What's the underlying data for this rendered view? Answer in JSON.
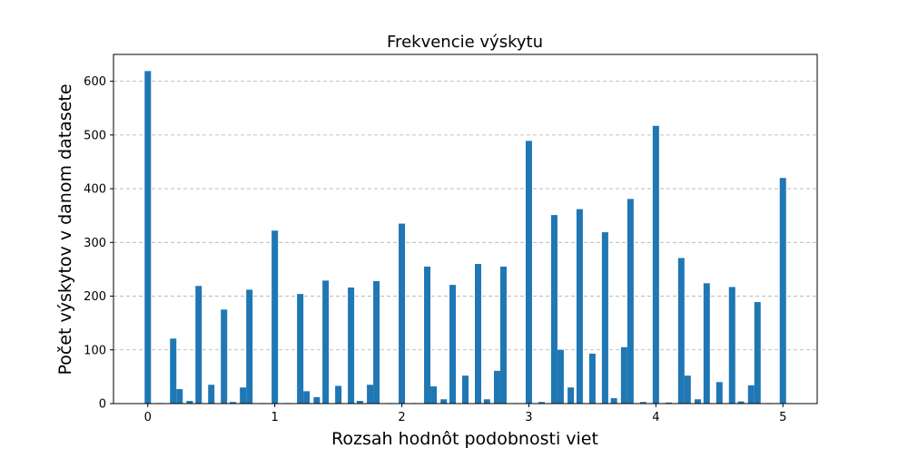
{
  "chart_data": {
    "type": "bar",
    "title": "Frekvencie výskytu",
    "xlabel": "Rozsah hodnôt podobnosti viet",
    "ylabel": "Počet výskytov v danom datasete",
    "xlim": [
      -0.27,
      5.27
    ],
    "ylim": [
      0,
      650
    ],
    "xticks": [
      0,
      1,
      2,
      3,
      4,
      5
    ],
    "yticks": [
      0,
      100,
      200,
      300,
      400,
      500,
      600
    ],
    "grid": {
      "axis": "y",
      "style": "dashed"
    },
    "bar_color": "#1f77b4",
    "bar_width": 0.05,
    "x": [
      0.0,
      0.1,
      0.2,
      0.25,
      0.33,
      0.4,
      0.5,
      0.6,
      0.67,
      0.75,
      0.8,
      0.9,
      1.0,
      1.1,
      1.2,
      1.25,
      1.33,
      1.4,
      1.5,
      1.6,
      1.67,
      1.75,
      1.8,
      1.9,
      2.0,
      2.1,
      2.2,
      2.25,
      2.33,
      2.4,
      2.5,
      2.6,
      2.67,
      2.75,
      2.8,
      2.9,
      3.0,
      3.1,
      3.2,
      3.25,
      3.33,
      3.4,
      3.5,
      3.6,
      3.67,
      3.75,
      3.8,
      3.9,
      4.0,
      4.1,
      4.2,
      4.25,
      4.33,
      4.4,
      4.5,
      4.6,
      4.67,
      4.75,
      4.8,
      4.9,
      5.0
    ],
    "values": [
      619,
      1,
      121,
      27,
      5,
      219,
      35,
      175,
      3,
      30,
      212,
      1,
      322,
      1,
      204,
      23,
      12,
      229,
      33,
      216,
      5,
      35,
      228,
      1,
      335,
      1,
      255,
      32,
      8,
      221,
      52,
      260,
      8,
      61,
      255,
      1,
      489,
      3,
      351,
      100,
      30,
      362,
      93,
      319,
      10,
      105,
      381,
      3,
      517,
      2,
      271,
      52,
      8,
      224,
      40,
      217,
      4,
      34,
      189,
      1,
      420
    ]
  }
}
